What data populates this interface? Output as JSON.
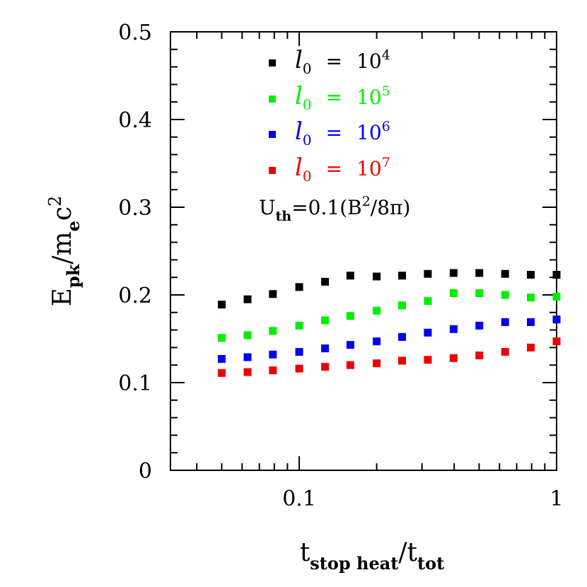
{
  "chart_data": {
    "type": "scatter",
    "x_scale": "log",
    "xlim": [
      0.0316,
      1.0
    ],
    "ylim": [
      0,
      0.5
    ],
    "xlabel": {
      "main": "t",
      "sub1": "stop heat",
      "mid": "/t",
      "sub2": "tot"
    },
    "ylabel": {
      "main": "E",
      "sub1": "pk",
      "mid": "/m",
      "sub2": "e",
      "tail": "c",
      "sup": "2"
    },
    "x_ticks": [
      {
        "value": 0.1,
        "label": "0.1"
      },
      {
        "value": 1,
        "label": "1"
      }
    ],
    "y_ticks": [
      {
        "value": 0,
        "label": "0"
      },
      {
        "value": 0.1,
        "label": "0.1"
      },
      {
        "value": 0.2,
        "label": "0.2"
      },
      {
        "value": 0.3,
        "label": "0.3"
      },
      {
        "value": 0.4,
        "label": "0.4"
      },
      {
        "value": 0.5,
        "label": "0.5"
      }
    ],
    "x": [
      0.05,
      0.063,
      0.079,
      0.1,
      0.126,
      0.158,
      0.2,
      0.251,
      0.316,
      0.398,
      0.501,
      0.631,
      0.794,
      1.0
    ],
    "series": [
      {
        "name": "l0 = 10^4",
        "color": "#000000",
        "legend": {
          "lhs": "l",
          "sub": "0",
          "eq": "=",
          "base": "10",
          "exp": "4"
        },
        "values": [
          0.189,
          0.195,
          0.201,
          0.209,
          0.215,
          0.222,
          0.221,
          0.222,
          0.224,
          0.225,
          0.225,
          0.224,
          0.223,
          0.223
        ]
      },
      {
        "name": "l0 = 10^5",
        "color": "#00ee00",
        "legend": {
          "lhs": "l",
          "sub": "0",
          "eq": "=",
          "base": "10",
          "exp": "5"
        },
        "values": [
          0.151,
          0.154,
          0.159,
          0.165,
          0.171,
          0.176,
          0.182,
          0.188,
          0.193,
          0.202,
          0.202,
          0.2,
          0.197,
          0.198
        ]
      },
      {
        "name": "l0 = 10^6",
        "color": "#0000ee",
        "legend": {
          "lhs": "l",
          "sub": "0",
          "eq": "=",
          "base": "10",
          "exp": "6"
        },
        "values": [
          0.127,
          0.129,
          0.132,
          0.135,
          0.139,
          0.143,
          0.147,
          0.152,
          0.157,
          0.161,
          0.165,
          0.169,
          0.169,
          0.172
        ]
      },
      {
        "name": "l0 = 10^7",
        "color": "#ee0000",
        "legend": {
          "lhs": "l",
          "sub": "0",
          "eq": "=",
          "base": "10",
          "exp": "7"
        },
        "values": [
          0.111,
          0.112,
          0.114,
          0.116,
          0.118,
          0.12,
          0.122,
          0.125,
          0.126,
          0.128,
          0.131,
          0.135,
          0.14,
          0.147
        ]
      }
    ],
    "annotation": {
      "lhs": "U",
      "sub": "th",
      "rhs_pre": "=0.1(B",
      "sup": "2",
      "rhs_post": "/8π)"
    },
    "grid": false,
    "legend_position": "top-right"
  }
}
